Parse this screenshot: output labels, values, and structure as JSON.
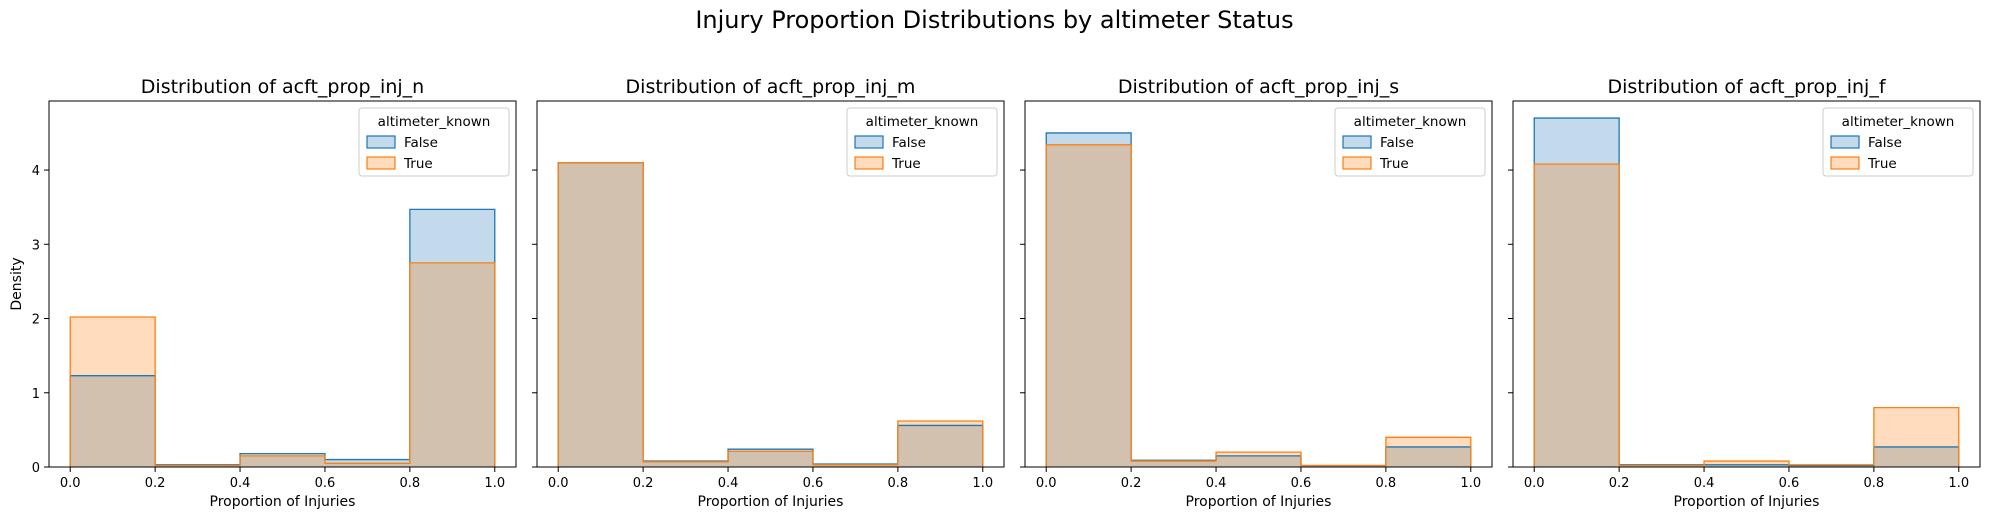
{
  "figure": {
    "suptitle": "Injury Proportion Distributions by altimeter Status"
  },
  "colors": {
    "false_fill": "#1f77b4",
    "false_edge": "#1f77b4",
    "true_fill": "#ff7f0e",
    "true_edge": "#ff7f0e",
    "overlap": "#c4c3bd"
  },
  "chart_data": [
    {
      "type": "histogram",
      "title": "Distribution of acft_prop_inj_n",
      "xlabel": "Proportion of Injuries",
      "ylabel": "Density",
      "bin_edges": [
        0.0,
        0.2,
        0.4,
        0.6,
        0.8,
        1.0
      ],
      "xticks": [
        "0.0",
        "0.2",
        "0.4",
        "0.6",
        "0.8",
        "1.0"
      ],
      "xlim": [
        -0.05,
        1.05
      ],
      "ylim": [
        0,
        4.93
      ],
      "yticks": [
        "0",
        "1",
        "2",
        "3",
        "4"
      ],
      "legend": {
        "title": "altimeter_known",
        "position": "upper right"
      },
      "series": [
        {
          "name": "False",
          "values": [
            1.23,
            0.03,
            0.18,
            0.1,
            3.47
          ]
        },
        {
          "name": "True",
          "values": [
            2.02,
            0.02,
            0.15,
            0.05,
            2.75
          ]
        }
      ]
    },
    {
      "type": "histogram",
      "title": "Distribution of acft_prop_inj_m",
      "xlabel": "Proportion of Injuries",
      "ylabel": "",
      "bin_edges": [
        0.0,
        0.2,
        0.4,
        0.6,
        0.8,
        1.0
      ],
      "xticks": [
        "0.0",
        "0.2",
        "0.4",
        "0.6",
        "0.8",
        "1.0"
      ],
      "xlim": [
        -0.05,
        1.05
      ],
      "ylim": [
        0,
        4.93
      ],
      "yticks": [
        "",
        "",
        "",
        "",
        ""
      ],
      "legend": {
        "title": "altimeter_known",
        "position": "upper right"
      },
      "series": [
        {
          "name": "False",
          "values": [
            4.1,
            0.08,
            0.24,
            0.04,
            0.56
          ]
        },
        {
          "name": "True",
          "values": [
            4.1,
            0.07,
            0.21,
            0.03,
            0.62
          ]
        }
      ]
    },
    {
      "type": "histogram",
      "title": "Distribution of acft_prop_inj_s",
      "xlabel": "Proportion of Injuries",
      "ylabel": "",
      "bin_edges": [
        0.0,
        0.2,
        0.4,
        0.6,
        0.8,
        1.0
      ],
      "xticks": [
        "0.0",
        "0.2",
        "0.4",
        "0.6",
        "0.8",
        "1.0"
      ],
      "xlim": [
        -0.05,
        1.05
      ],
      "ylim": [
        0,
        4.93
      ],
      "yticks": [
        "",
        "",
        "",
        "",
        ""
      ],
      "legend": {
        "title": "altimeter_known",
        "position": "upper right"
      },
      "series": [
        {
          "name": "False",
          "values": [
            4.5,
            0.09,
            0.15,
            0.02,
            0.27
          ]
        },
        {
          "name": "True",
          "values": [
            4.34,
            0.08,
            0.2,
            0.02,
            0.4
          ]
        }
      ]
    },
    {
      "type": "histogram",
      "title": "Distribution of acft_prop_inj_f",
      "xlabel": "Proportion of Injuries",
      "ylabel": "",
      "bin_edges": [
        0.0,
        0.2,
        0.4,
        0.6,
        0.8,
        1.0
      ],
      "xticks": [
        "0.0",
        "0.2",
        "0.4",
        "0.6",
        "0.8",
        "1.0"
      ],
      "xlim": [
        -0.05,
        1.05
      ],
      "ylim": [
        0,
        4.93
      ],
      "yticks": [
        "",
        "",
        "",
        "",
        ""
      ],
      "legend": {
        "title": "altimeter_known",
        "position": "upper right"
      },
      "series": [
        {
          "name": "False",
          "values": [
            4.7,
            0.03,
            0.03,
            0.02,
            0.27
          ]
        },
        {
          "name": "True",
          "values": [
            4.08,
            0.02,
            0.08,
            0.03,
            0.8
          ]
        }
      ]
    }
  ]
}
